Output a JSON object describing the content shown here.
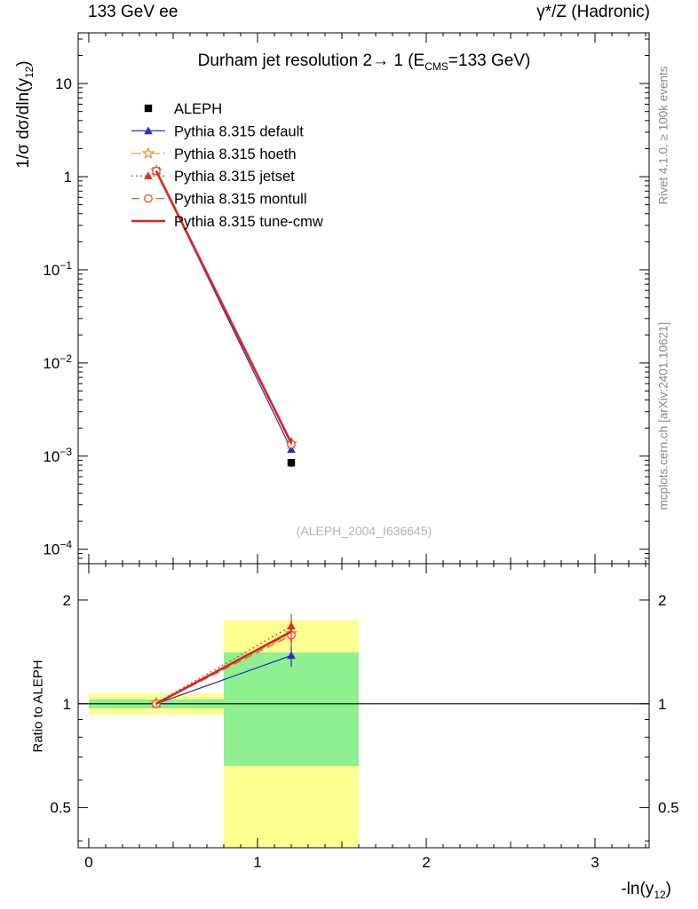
{
  "header": {
    "left": "133 GeV ee",
    "right": "γ*/Z (Hadronic)"
  },
  "side_notes": {
    "top_right": "Rivet 4.1.0, ≥ 100k events",
    "bottom_right": "mcplots.cern.ch [arXiv:2401.10621]"
  },
  "watermark": "(ALEPH_2004_I636645)",
  "labels": {
    "title_main1": "Durham jet resolution 2→ 1 (E",
    "title_sub": "CMS",
    "title_main2": "=133 GeV)",
    "ylabel_main1": "1/σ dσ/dln(y",
    "ylabel_sub": "12",
    "ylabel_main2": ")",
    "xlabel_main1": "-ln(y",
    "xlabel_sub": "12",
    "xlabel_main2": ")",
    "ratio_ylabel": "Ratio to ALEPH"
  },
  "chart_data": {
    "type": "line",
    "title": "Durham jet resolution 2→ 1 (E_CMS=133 GeV)",
    "xlabel": "-ln(y_12)",
    "ylabel": "1/σ dσ/dln(y_12)",
    "ratio_label": "Ratio to ALEPH",
    "legend_position": "top-left",
    "grid": false,
    "xlim": [
      -0.063,
      3.321
    ],
    "x_major_ticks": [
      0,
      1,
      2,
      3
    ],
    "main_panel": {
      "yscale": "log",
      "ylim": [
        7e-05,
        35
      ],
      "decade_labels": [
        10,
        1,
        0.1,
        0.01,
        0.001,
        0.0001
      ]
    },
    "ratio_panel": {
      "yscale": "log",
      "ylim": [
        0.382,
        2.55
      ],
      "labeled_ticks": [
        0.5,
        1,
        2
      ]
    },
    "x": [
      0.4,
      1.2
    ],
    "bins": [
      {
        "edges": [
          0.0,
          0.8
        ],
        "yellow": [
          0.93,
          1.07
        ],
        "green": [
          0.97,
          1.03
        ]
      },
      {
        "edges": [
          0.8,
          1.6
        ],
        "yellow": [
          0.382,
          1.75
        ],
        "green": [
          0.66,
          1.41
        ]
      }
    ],
    "band_colors": {
      "yellow": "#ffff8f",
      "green": "#8ef08e"
    },
    "series": [
      {
        "name": "ALEPH",
        "color": "#000000",
        "marker": "square",
        "line": "none",
        "values": [
          1.15,
          0.00085
        ],
        "y_err_frac": [
          0.03,
          0.1
        ]
      },
      {
        "name": "Pythia 8.315 default",
        "color": "#2b2bcc",
        "marker": "triangle",
        "line": "solid",
        "line_width": 1.2,
        "values": [
          1.15,
          0.00118
        ],
        "y_err_frac": [
          0.01,
          0.05
        ],
        "ratio": [
          1.0,
          1.38
        ],
        "ratio_err": [
          0.015,
          0.1
        ]
      },
      {
        "name": "Pythia 8.315 hoeth",
        "color": "#e2903c",
        "marker": "star",
        "line": "dashdot",
        "line_width": 1.2,
        "values": [
          1.16,
          0.00136
        ],
        "y_err_frac": [
          0.01,
          0.05
        ],
        "ratio": [
          1.005,
          1.6
        ],
        "ratio_err": [
          0.015,
          0.13
        ]
      },
      {
        "name": "Pythia 8.315 jetset",
        "color": "#d6331c",
        "marker": "triangle",
        "line": "dotted",
        "line_width": 1.4,
        "values": [
          1.16,
          0.00143
        ],
        "y_err_frac": [
          0.01,
          0.05
        ],
        "ratio": [
          1.005,
          1.68
        ],
        "ratio_err": [
          0.015,
          0.14
        ]
      },
      {
        "name": "Pythia 8.315 montull",
        "color": "#df5b33",
        "marker": "circle",
        "line": "dashed",
        "line_width": 1.2,
        "values": [
          1.15,
          0.00134
        ],
        "y_err_frac": [
          0.01,
          0.05
        ],
        "ratio": [
          1.0,
          1.58
        ],
        "ratio_err": [
          0.015,
          0.12
        ]
      },
      {
        "name": "Pythia 8.315 tune-cmw",
        "color": "#e3211a",
        "marker": "none",
        "line": "solid",
        "line_width": 2.6,
        "values": [
          1.15,
          0.00138
        ],
        "y_err_frac": [
          0.01,
          0.05
        ],
        "ratio": [
          1.0,
          1.62
        ],
        "ratio_err": [
          0.015,
          0.12
        ]
      }
    ]
  }
}
